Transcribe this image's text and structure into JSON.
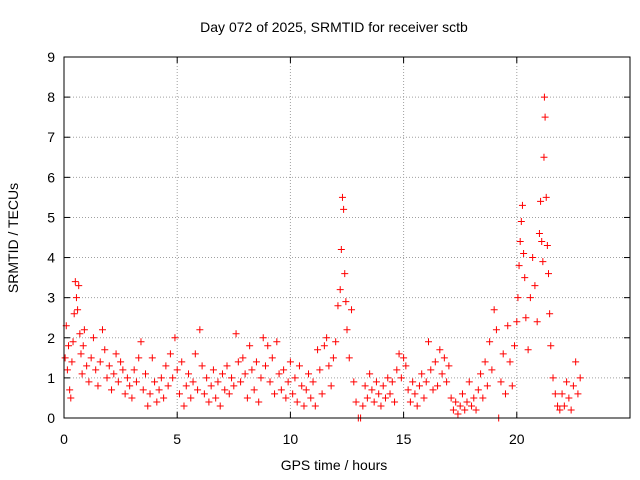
{
  "chart_data": {
    "type": "scatter",
    "title": "Day 072 of 2025, SRMTID for receiver sctb",
    "xlabel": "GPS time / hours",
    "ylabel": "SRMTID / TECUs",
    "xlim": [
      0,
      25
    ],
    "ylim": [
      0,
      9
    ],
    "xticks": [
      0,
      5,
      10,
      15,
      20
    ],
    "yticks": [
      0,
      1,
      2,
      3,
      4,
      5,
      6,
      7,
      8,
      9
    ],
    "grid": true,
    "marker": "+",
    "series_color": "#ff0000",
    "series": [
      {
        "name": "SRMTID",
        "points": [
          [
            0.05,
            1.5
          ],
          [
            0.1,
            2.3
          ],
          [
            0.15,
            1.2
          ],
          [
            0.2,
            1.8
          ],
          [
            0.25,
            0.7
          ],
          [
            0.3,
            0.5
          ],
          [
            0.35,
            1.4
          ],
          [
            0.4,
            1.9
          ],
          [
            0.45,
            2.6
          ],
          [
            0.5,
            3.4
          ],
          [
            0.55,
            3.0
          ],
          [
            0.6,
            2.7
          ],
          [
            0.65,
            3.3
          ],
          [
            0.7,
            2.1
          ],
          [
            0.75,
            1.6
          ],
          [
            0.8,
            1.1
          ],
          [
            0.85,
            1.8
          ],
          [
            0.9,
            2.2
          ],
          [
            1.0,
            1.3
          ],
          [
            1.1,
            0.9
          ],
          [
            1.2,
            1.5
          ],
          [
            1.3,
            2.0
          ],
          [
            1.4,
            1.2
          ],
          [
            1.5,
            0.8
          ],
          [
            1.6,
            1.4
          ],
          [
            1.7,
            2.2
          ],
          [
            1.8,
            1.7
          ],
          [
            1.9,
            1.0
          ],
          [
            2.0,
            1.3
          ],
          [
            2.1,
            0.7
          ],
          [
            2.2,
            1.1
          ],
          [
            2.3,
            1.6
          ],
          [
            2.4,
            0.9
          ],
          [
            2.5,
            1.4
          ],
          [
            2.6,
            1.2
          ],
          [
            2.7,
            0.6
          ],
          [
            2.8,
            1.0
          ],
          [
            2.9,
            0.8
          ],
          [
            3.0,
            0.5
          ],
          [
            3.1,
            1.2
          ],
          [
            3.2,
            0.9
          ],
          [
            3.3,
            1.5
          ],
          [
            3.4,
            1.9
          ],
          [
            3.5,
            0.7
          ],
          [
            3.6,
            1.1
          ],
          [
            3.7,
            0.3
          ],
          [
            3.8,
            0.6
          ],
          [
            3.9,
            1.5
          ],
          [
            4.0,
            0.9
          ],
          [
            4.1,
            0.4
          ],
          [
            4.2,
            0.7
          ],
          [
            4.3,
            1.0
          ],
          [
            4.4,
            0.5
          ],
          [
            4.5,
            1.3
          ],
          [
            4.6,
            0.8
          ],
          [
            4.7,
            1.6
          ],
          [
            4.8,
            1.0
          ],
          [
            4.9,
            2.0
          ],
          [
            5.0,
            1.2
          ],
          [
            5.1,
            0.6
          ],
          [
            5.2,
            1.4
          ],
          [
            5.3,
            0.3
          ],
          [
            5.4,
            0.8
          ],
          [
            5.5,
            1.1
          ],
          [
            5.6,
            0.5
          ],
          [
            5.7,
            0.9
          ],
          [
            5.8,
            1.6
          ],
          [
            5.9,
            0.7
          ],
          [
            6.0,
            2.2
          ],
          [
            6.1,
            1.3
          ],
          [
            6.2,
            0.6
          ],
          [
            6.3,
            1.0
          ],
          [
            6.4,
            0.4
          ],
          [
            6.5,
            0.8
          ],
          [
            6.6,
            1.2
          ],
          [
            6.7,
            0.5
          ],
          [
            6.8,
            0.9
          ],
          [
            6.9,
            0.3
          ],
          [
            7.0,
            1.1
          ],
          [
            7.1,
            0.7
          ],
          [
            7.2,
            1.3
          ],
          [
            7.3,
            0.6
          ],
          [
            7.4,
            1.0
          ],
          [
            7.5,
            0.8
          ],
          [
            7.6,
            2.1
          ],
          [
            7.7,
            1.4
          ],
          [
            7.8,
            0.9
          ],
          [
            7.9,
            1.5
          ],
          [
            8.0,
            1.1
          ],
          [
            8.1,
            0.5
          ],
          [
            8.2,
            1.8
          ],
          [
            8.3,
            1.2
          ],
          [
            8.4,
            0.7
          ],
          [
            8.5,
            1.4
          ],
          [
            8.6,
            0.4
          ],
          [
            8.7,
            1.0
          ],
          [
            8.8,
            2.0
          ],
          [
            8.9,
            1.3
          ],
          [
            9.0,
            1.8
          ],
          [
            9.1,
            0.9
          ],
          [
            9.2,
            1.5
          ],
          [
            9.3,
            0.6
          ],
          [
            9.4,
            1.9
          ],
          [
            9.5,
            1.1
          ],
          [
            9.6,
            0.7
          ],
          [
            9.7,
            1.2
          ],
          [
            9.8,
            0.5
          ],
          [
            9.9,
            0.9
          ],
          [
            10.0,
            1.4
          ],
          [
            10.1,
            0.6
          ],
          [
            10.2,
            1.0
          ],
          [
            10.3,
            0.4
          ],
          [
            10.4,
            1.3
          ],
          [
            10.5,
            0.8
          ],
          [
            10.6,
            0.3
          ],
          [
            10.7,
            0.7
          ],
          [
            10.8,
            1.1
          ],
          [
            10.9,
            0.5
          ],
          [
            11.0,
            0.9
          ],
          [
            11.1,
            0.3
          ],
          [
            11.2,
            1.7
          ],
          [
            11.3,
            1.2
          ],
          [
            11.4,
            0.6
          ],
          [
            11.5,
            1.8
          ],
          [
            11.6,
            2.0
          ],
          [
            11.7,
            1.3
          ],
          [
            11.8,
            0.8
          ],
          [
            11.9,
            1.5
          ],
          [
            12.0,
            1.9
          ],
          [
            12.1,
            2.8
          ],
          [
            12.2,
            3.2
          ],
          [
            12.25,
            4.2
          ],
          [
            12.3,
            5.5
          ],
          [
            12.35,
            5.2
          ],
          [
            12.4,
            3.6
          ],
          [
            12.45,
            2.9
          ],
          [
            12.5,
            2.2
          ],
          [
            12.6,
            1.5
          ],
          [
            12.7,
            2.7
          ],
          [
            12.8,
            0.9
          ],
          [
            12.9,
            0.4
          ],
          [
            13.0,
            0.0
          ],
          [
            13.1,
            0.0
          ],
          [
            13.2,
            0.3
          ],
          [
            13.3,
            0.8
          ],
          [
            13.4,
            0.5
          ],
          [
            13.5,
            1.1
          ],
          [
            13.6,
            0.7
          ],
          [
            13.7,
            0.4
          ],
          [
            13.8,
            0.9
          ],
          [
            13.9,
            0.6
          ],
          [
            14.0,
            0.3
          ],
          [
            14.1,
            0.8
          ],
          [
            14.2,
            0.5
          ],
          [
            14.3,
            1.0
          ],
          [
            14.4,
            0.6
          ],
          [
            14.5,
            0.9
          ],
          [
            14.6,
            0.4
          ],
          [
            14.7,
            1.2
          ],
          [
            14.8,
            1.6
          ],
          [
            14.9,
            1.0
          ],
          [
            15.0,
            1.5
          ],
          [
            15.1,
            1.3
          ],
          [
            15.2,
            0.7
          ],
          [
            15.3,
            0.4
          ],
          [
            15.4,
            0.9
          ],
          [
            15.5,
            0.6
          ],
          [
            15.6,
            0.3
          ],
          [
            15.7,
            0.8
          ],
          [
            15.8,
            1.1
          ],
          [
            15.9,
            0.5
          ],
          [
            16.0,
            0.9
          ],
          [
            16.1,
            1.9
          ],
          [
            16.2,
            1.2
          ],
          [
            16.3,
            0.7
          ],
          [
            16.4,
            1.4
          ],
          [
            16.5,
            0.8
          ],
          [
            16.6,
            1.7
          ],
          [
            16.7,
            1.1
          ],
          [
            16.8,
            1.5
          ],
          [
            16.9,
            0.9
          ],
          [
            17.0,
            1.3
          ],
          [
            17.1,
            0.5
          ],
          [
            17.2,
            0.2
          ],
          [
            17.3,
            0.4
          ],
          [
            17.4,
            0.1
          ],
          [
            17.5,
            0.3
          ],
          [
            17.6,
            0.6
          ],
          [
            17.7,
            0.2
          ],
          [
            17.8,
            0.4
          ],
          [
            17.9,
            0.9
          ],
          [
            18.0,
            0.3
          ],
          [
            18.1,
            0.5
          ],
          [
            18.2,
            0.2
          ],
          [
            18.3,
            0.7
          ],
          [
            18.4,
            1.1
          ],
          [
            18.5,
            0.5
          ],
          [
            18.6,
            1.4
          ],
          [
            18.7,
            0.8
          ],
          [
            18.8,
            1.9
          ],
          [
            18.9,
            1.2
          ],
          [
            19.0,
            2.7
          ],
          [
            19.1,
            2.2
          ],
          [
            19.2,
            0.0
          ],
          [
            19.3,
            0.9
          ],
          [
            19.4,
            1.6
          ],
          [
            19.5,
            0.6
          ],
          [
            19.6,
            2.3
          ],
          [
            19.7,
            1.4
          ],
          [
            19.8,
            0.8
          ],
          [
            19.9,
            1.8
          ],
          [
            20.0,
            2.4
          ],
          [
            20.05,
            3.0
          ],
          [
            20.1,
            3.8
          ],
          [
            20.15,
            4.4
          ],
          [
            20.2,
            4.9
          ],
          [
            20.25,
            5.3
          ],
          [
            20.3,
            4.1
          ],
          [
            20.35,
            3.5
          ],
          [
            20.4,
            2.5
          ],
          [
            20.5,
            1.7
          ],
          [
            20.6,
            3.0
          ],
          [
            20.7,
            4.0
          ],
          [
            20.8,
            3.3
          ],
          [
            20.9,
            2.4
          ],
          [
            21.0,
            4.6
          ],
          [
            21.05,
            5.4
          ],
          [
            21.1,
            4.4
          ],
          [
            21.15,
            3.9
          ],
          [
            21.2,
            6.5
          ],
          [
            21.22,
            8.0
          ],
          [
            21.25,
            7.5
          ],
          [
            21.3,
            5.5
          ],
          [
            21.35,
            4.3
          ],
          [
            21.4,
            3.6
          ],
          [
            21.45,
            2.6
          ],
          [
            21.5,
            1.8
          ],
          [
            21.6,
            1.0
          ],
          [
            21.7,
            0.6
          ],
          [
            21.8,
            0.3
          ],
          [
            21.9,
            0.2
          ],
          [
            22.0,
            0.6
          ],
          [
            22.1,
            0.3
          ],
          [
            22.2,
            0.9
          ],
          [
            22.3,
            0.5
          ],
          [
            22.4,
            0.2
          ],
          [
            22.5,
            0.8
          ],
          [
            22.6,
            1.4
          ],
          [
            22.7,
            0.6
          ],
          [
            22.8,
            1.0
          ]
        ]
      }
    ]
  }
}
